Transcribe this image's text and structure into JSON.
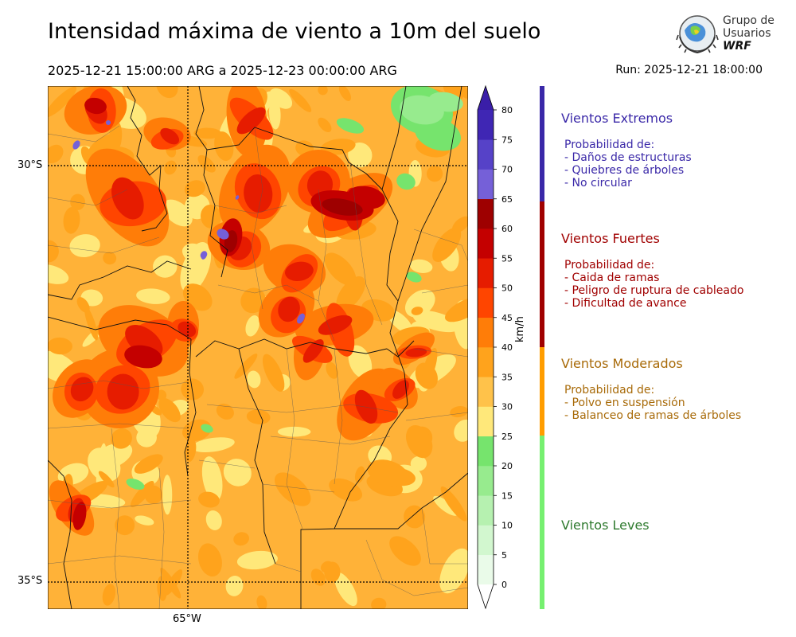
{
  "header": {
    "title": "Intensidad máxima de viento a 10m del suelo",
    "period": "2025-12-21 15:00:00 ARG  a  2025-12-23 00:00:00 ARG",
    "run": "Run: 2025-12-21 18:00:00"
  },
  "logo": {
    "line1": "Grupo de",
    "line2": "Usuarios",
    "line3": "WRF"
  },
  "map": {
    "lat_labels": [
      "30°S",
      "35°S"
    ],
    "lon_labels": [
      "65°W"
    ]
  },
  "colorbar": {
    "unit": "km/h",
    "ticks": [
      "0",
      "5",
      "10",
      "15",
      "20",
      "25",
      "30",
      "35",
      "40",
      "45",
      "50",
      "55",
      "60",
      "65",
      "70",
      "75",
      "80"
    ],
    "colors": [
      "#eafbe9",
      "#d2f7cf",
      "#b6f1b0",
      "#97eb8e",
      "#76e46d",
      "#ffe87a",
      "#ffc24a",
      "#ffa31c",
      "#ff7d08",
      "#ff4500",
      "#e61c00",
      "#c40000",
      "#9e0000",
      "#7560d8",
      "#5642c8",
      "#3f26b4"
    ],
    "over_color": "#3a1ea8",
    "under_color": "#ffffff"
  },
  "categories": [
    {
      "name": "Vientos Extremos",
      "color": "#3a28a8",
      "bar_color": "#3a28a8",
      "lines": [
        "Probabilidad de:",
        "- Daños de estructuras",
        "- Quiebres de árboles",
        "- No circular"
      ]
    },
    {
      "name": "Vientos Fuertes",
      "color": "#a00000",
      "bar_color": "#a00000",
      "lines": [
        "Probabilidad de:",
        "- Caida de ramas",
        "- Peligro de ruptura de cableado",
        "- Dificultad de avance"
      ]
    },
    {
      "name": "Vientos Moderados",
      "color": "#a86a08",
      "bar_color": "#ff9d00",
      "lines": [
        "Probabilidad de:",
        "- Polvo en suspensión",
        "- Balanceo de ramas de árboles"
      ]
    },
    {
      "name": "Vientos Leves",
      "color": "#2e7a2e",
      "bar_color": "#76f070",
      "lines": []
    }
  ]
}
